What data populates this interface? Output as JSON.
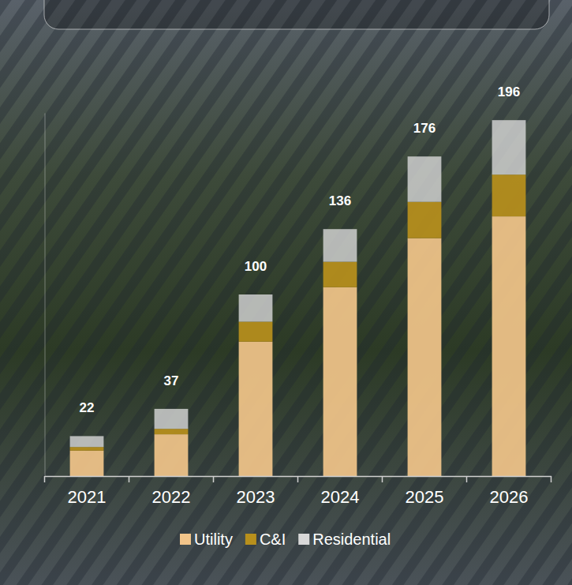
{
  "chart_data": {
    "type": "bar",
    "stacked": true,
    "categories": [
      "2021",
      "2022",
      "2023",
      "2024",
      "2025",
      "2026"
    ],
    "series": [
      {
        "name": "Utility",
        "color": "#f2c58a",
        "values": [
          14,
          23,
          74,
          104,
          131,
          143
        ]
      },
      {
        "name": "C&I",
        "color": "#b8901c",
        "values": [
          2,
          3,
          11,
          14,
          20,
          23
        ]
      },
      {
        "name": "Residential",
        "color": "#d8d8d8",
        "values": [
          6,
          11,
          15,
          18,
          25,
          30
        ]
      }
    ],
    "totals": [
      22,
      37,
      100,
      136,
      176,
      196
    ],
    "ylim": [
      0,
      200
    ],
    "tick_labels": "x",
    "legend": "bottom"
  }
}
